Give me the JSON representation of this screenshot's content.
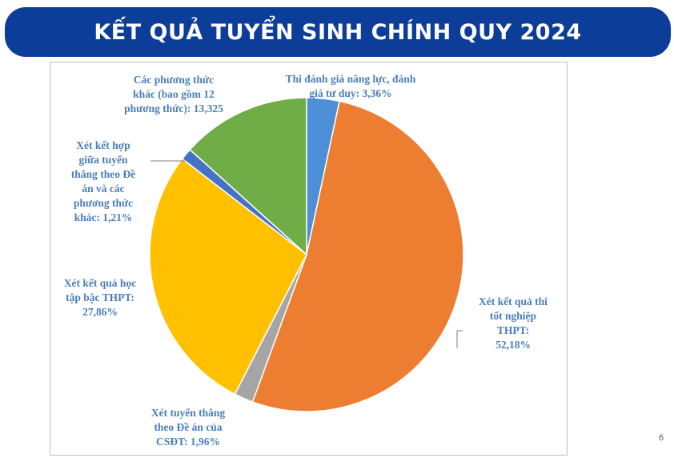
{
  "header": {
    "title": "KẾT QUẢ TUYỂN SINH CHÍNH QUY 2024"
  },
  "page_number": "6",
  "chart_data": {
    "type": "pie",
    "title": "",
    "label_color": "#4a7ebb",
    "slices": [
      {
        "label_lines": [
          "Thi đánh giá năng lực, đánh",
          "giá tư duy: 3,36%"
        ],
        "value": 3.36,
        "color": "#4c8fd6"
      },
      {
        "label_lines": [
          "Xét kết quả thi",
          "tốt nghiệp",
          "THPT:",
          "52,18%"
        ],
        "value": 52.18,
        "color": "#ed7d31"
      },
      {
        "label_lines": [
          "Xét tuyển thẳng",
          "theo Đề án của",
          "CSĐT: 1,96%"
        ],
        "value": 1.96,
        "color": "#a5a5a5"
      },
      {
        "label_lines": [
          "Xét kết quả học",
          "tập bậc THPT:",
          "27,86%"
        ],
        "value": 27.86,
        "color": "#ffc000"
      },
      {
        "label_lines": [
          "Xét kết hợp",
          "giữa tuyển",
          "thẳng theo Đề",
          "án và các",
          "phương thức",
          "khác: 1,21%"
        ],
        "value": 1.21,
        "color": "#4472c4"
      },
      {
        "label_lines": [
          "Các phương thức",
          "khác (bao gồm 12",
          "phương thức): 13,325"
        ],
        "value": 13.325,
        "color": "#70ad47"
      }
    ]
  }
}
